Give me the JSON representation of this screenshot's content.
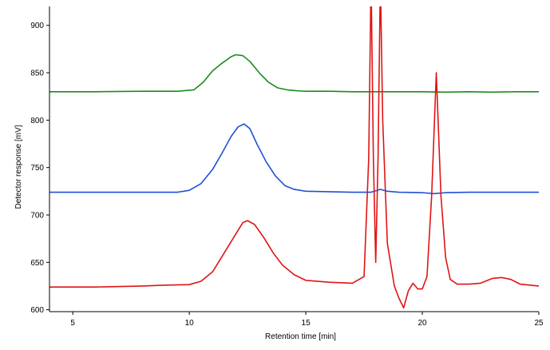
{
  "chart_data": {
    "type": "line",
    "title": "",
    "xlabel": "Retention time [min]",
    "ylabel": "Detector response [mV]",
    "xlim": [
      4,
      25
    ],
    "ylim": [
      598,
      920
    ],
    "xticks": [
      5,
      10,
      15,
      20,
      25
    ],
    "yticks": [
      600,
      650,
      700,
      750,
      800,
      850,
      900
    ],
    "grid": false,
    "legend": "none",
    "series": [
      {
        "color": "#1a8c1a",
        "x": [
          4,
          6,
          8,
          9.5,
          10.2,
          10.6,
          11.0,
          11.4,
          11.8,
          12.0,
          12.3,
          12.6,
          13.0,
          13.4,
          13.8,
          14.2,
          14.6,
          15,
          16,
          17,
          18,
          19,
          20,
          21,
          22,
          23,
          24,
          25
        ],
        "y": [
          830,
          830,
          830.5,
          830.5,
          832,
          840,
          852,
          860,
          867,
          869,
          868,
          862,
          850,
          840,
          834,
          832,
          831,
          830.5,
          830.5,
          830,
          830,
          830,
          830,
          829.5,
          830,
          829.5,
          830,
          830
        ]
      },
      {
        "color": "#1f4fd6",
        "x": [
          4,
          6,
          8,
          9.5,
          10.0,
          10.5,
          11.0,
          11.4,
          11.8,
          12.1,
          12.35,
          12.6,
          12.9,
          13.3,
          13.7,
          14.1,
          14.5,
          15,
          16,
          17,
          17.8,
          18.2,
          18.5,
          19,
          20,
          20.5,
          21,
          22,
          23,
          24,
          25
        ],
        "y": [
          724,
          724,
          724,
          724,
          726,
          733,
          748,
          765,
          783,
          793,
          796,
          791,
          775,
          756,
          741,
          731,
          727,
          725,
          724.5,
          724,
          724,
          727,
          725,
          724,
          723.5,
          722.5,
          723.5,
          724,
          724,
          724,
          724
        ]
      },
      {
        "color": "#e01414",
        "x": [
          4,
          5,
          6,
          7,
          8,
          9,
          10,
          10.5,
          11.0,
          11.5,
          12.0,
          12.3,
          12.5,
          12.8,
          13.2,
          13.6,
          14.0,
          14.5,
          15,
          16,
          17,
          17.5,
          17.7,
          17.8,
          17.9,
          18.0,
          18.1,
          18.2,
          18.3,
          18.5,
          18.8,
          19.0,
          19.2,
          19.4,
          19.6,
          19.8,
          20.0,
          20.2,
          20.4,
          20.6,
          20.8,
          21.0,
          21.2,
          21.5,
          22,
          22.5,
          23.0,
          23.4,
          23.8,
          24.2,
          25
        ],
        "y": [
          624,
          624,
          624,
          624.5,
          625,
          626,
          626.5,
          630,
          640,
          660,
          680,
          692,
          694,
          690,
          676,
          660,
          647,
          637,
          631,
          629,
          628,
          635,
          760,
          950,
          760,
          650,
          760,
          950,
          800,
          670,
          625,
          612,
          602,
          620,
          628,
          622,
          622,
          635,
          720,
          850,
          720,
          655,
          632,
          627,
          627,
          628,
          633,
          634,
          632,
          627,
          625
        ]
      }
    ]
  }
}
